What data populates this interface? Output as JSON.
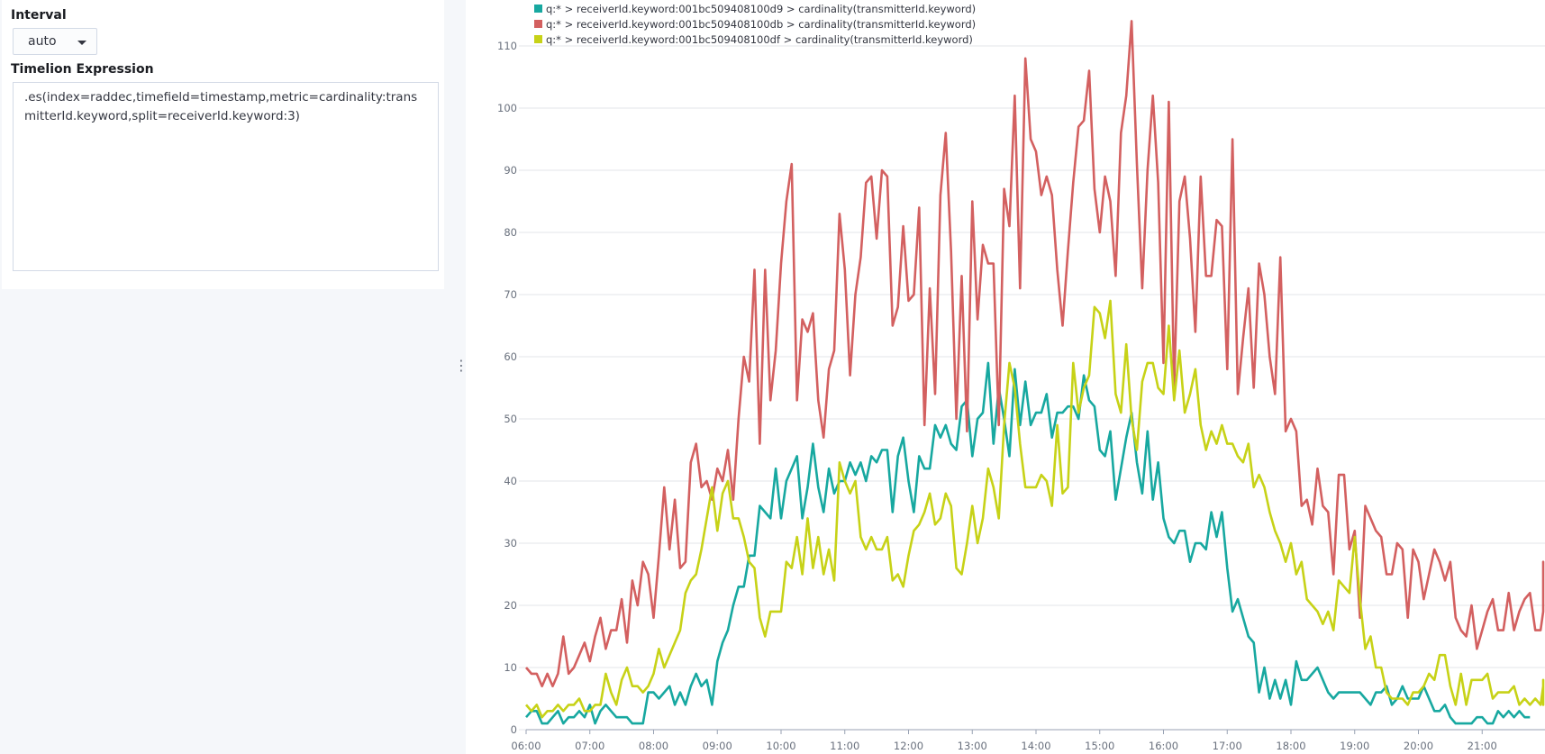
{
  "controls": {
    "interval_label": "Interval",
    "interval_value": "auto",
    "expression_label": "Timelion Expression",
    "expression_value": ".es(index=raddec,timefield=timestamp,metric=cardinality:transmitterId.keyword,split=receiverId.keyword:3)",
    "resizer_glyph": "⋮"
  },
  "chart_data": {
    "type": "line",
    "title": "",
    "xlabel": "",
    "ylabel": "",
    "ylim": [
      0,
      115
    ],
    "y_ticks": [
      0,
      10,
      20,
      30,
      40,
      50,
      60,
      70,
      80,
      90,
      100,
      110
    ],
    "x_ticks": [
      "06:00",
      "07:00",
      "08:00",
      "09:00",
      "10:00",
      "11:00",
      "12:00",
      "13:00",
      "14:00",
      "15:00",
      "16:00",
      "17:00",
      "18:00",
      "19:00",
      "20:00",
      "21:00"
    ],
    "x_interval_minutes": 5,
    "x_start": "06:00",
    "grid": "horizontal",
    "legend_position": "top-left",
    "series": [
      {
        "name": "q:* > receiverId.keyword:001bc509408100d9 > cardinality(transmitterId.keyword)",
        "color": "#17a8a0",
        "values": [
          2,
          3,
          3,
          1,
          1,
          2,
          3,
          1,
          2,
          2,
          3,
          2,
          4,
          1,
          3,
          4,
          3,
          2,
          2,
          2,
          1,
          1,
          1,
          6,
          6,
          5,
          6,
          7,
          4,
          6,
          4,
          7,
          9,
          7,
          8,
          4,
          11,
          14,
          16,
          20,
          23,
          23,
          28,
          28,
          36,
          35,
          34,
          42,
          34,
          40,
          42,
          44,
          34,
          39,
          46,
          39,
          35,
          42,
          38,
          40,
          40,
          43,
          41,
          43,
          40,
          44,
          43,
          45,
          45,
          35,
          44,
          47,
          40,
          35,
          44,
          42,
          42,
          49,
          47,
          49,
          46,
          45,
          52,
          53,
          44,
          50,
          51,
          59,
          46,
          55,
          50,
          44,
          58,
          49,
          56,
          49,
          51,
          51,
          54,
          47,
          51,
          51,
          52,
          52,
          50,
          57,
          53,
          52,
          45,
          44,
          48,
          37,
          42,
          47,
          51,
          43,
          38,
          48,
          37,
          43,
          34,
          31,
          30,
          32,
          32,
          27,
          30,
          30,
          29,
          35,
          31,
          35,
          26,
          19,
          21,
          18,
          15,
          14,
          6,
          10,
          5,
          8,
          5,
          8,
          4,
          11,
          8,
          8,
          9,
          10,
          8,
          6,
          5,
          6,
          6,
          6,
          6,
          6,
          5,
          4,
          6,
          6,
          7,
          4,
          5,
          7,
          5,
          5,
          5,
          7,
          5,
          3,
          3,
          4,
          2,
          1,
          1,
          1,
          1,
          2,
          2,
          1,
          1,
          3,
          2,
          3,
          2,
          3,
          2,
          2
        ]
      },
      {
        "name": "q:* > receiverId.keyword:001bc509408100db > cardinality(transmitterId.keyword)",
        "color": "#d36060",
        "values": [
          10,
          9,
          9,
          7,
          9,
          7,
          9,
          15,
          9,
          10,
          12,
          14,
          11,
          15,
          18,
          13,
          16,
          16,
          21,
          14,
          24,
          20,
          27,
          25,
          18,
          28,
          39,
          29,
          37,
          26,
          27,
          43,
          46,
          39,
          40,
          37,
          42,
          40,
          45,
          37,
          50,
          60,
          56,
          74,
          46,
          74,
          53,
          61,
          75,
          85,
          91,
          53,
          66,
          64,
          67,
          53,
          47,
          58,
          61,
          83,
          74,
          57,
          70,
          76,
          88,
          89,
          79,
          90,
          89,
          65,
          68,
          81,
          69,
          70,
          84,
          49,
          71,
          54,
          86,
          96,
          77,
          50,
          73,
          48,
          85,
          66,
          78,
          75,
          75,
          49,
          87,
          81,
          102,
          71,
          108,
          95,
          93,
          86,
          89,
          86,
          74,
          65,
          77,
          88,
          97,
          98,
          106,
          87,
          80,
          89,
          85,
          73,
          96,
          102,
          114,
          91,
          71,
          90,
          102,
          88,
          59,
          101,
          55,
          85,
          89,
          79,
          64,
          89,
          73,
          73,
          82,
          81,
          58,
          95,
          54,
          63,
          71,
          55,
          75,
          70,
          60,
          54,
          76,
          48,
          50,
          48,
          36,
          37,
          33,
          42,
          36,
          35,
          25,
          41,
          41,
          29,
          32,
          18,
          36,
          34,
          32,
          31,
          25,
          25,
          30,
          29,
          18,
          29,
          27,
          21,
          25,
          29,
          27,
          24,
          27,
          18,
          16,
          15,
          20,
          13,
          16,
          19,
          21,
          16,
          16,
          22,
          16,
          19,
          21,
          22,
          16,
          16,
          19,
          22,
          27,
          20
        ]
      },
      {
        "name": "q:* > receiverId.keyword:001bc509408100df > cardinality(transmitterId.keyword)",
        "color": "#c7d217",
        "values": [
          4,
          3,
          4,
          2,
          3,
          3,
          4,
          3,
          4,
          4,
          5,
          3,
          3,
          4,
          4,
          9,
          6,
          4,
          8,
          10,
          7,
          7,
          6,
          7,
          9,
          13,
          10,
          12,
          14,
          16,
          22,
          24,
          25,
          29,
          34,
          39,
          32,
          38,
          40,
          34,
          34,
          31,
          27,
          26,
          18,
          15,
          19,
          19,
          19,
          27,
          26,
          31,
          25,
          34,
          26,
          31,
          25,
          29,
          24,
          43,
          40,
          38,
          40,
          31,
          29,
          31,
          29,
          29,
          31,
          24,
          25,
          23,
          28,
          32,
          33,
          35,
          38,
          33,
          34,
          38,
          36,
          26,
          25,
          30,
          36,
          30,
          34,
          42,
          39,
          34,
          49,
          59,
          55,
          46,
          39,
          39,
          39,
          41,
          40,
          36,
          49,
          38,
          39,
          59,
          51,
          55,
          57,
          68,
          67,
          63,
          69,
          54,
          51,
          62,
          50,
          45,
          56,
          59,
          59,
          55,
          54,
          65,
          53,
          61,
          51,
          54,
          58,
          49,
          45,
          48,
          46,
          49,
          46,
          46,
          44,
          43,
          46,
          39,
          41,
          39,
          35,
          32,
          30,
          27,
          30,
          25,
          27,
          21,
          20,
          19,
          17,
          19,
          16,
          24,
          23,
          22,
          31,
          21,
          13,
          15,
          10,
          10,
          6,
          5,
          5,
          5,
          4,
          6,
          6,
          7,
          9,
          8,
          12,
          12,
          7,
          4,
          9,
          4,
          8,
          8,
          8,
          9,
          5,
          6,
          6,
          6,
          7,
          4,
          5,
          4,
          5,
          4,
          7,
          5,
          8,
          4,
          5,
          7
        ]
      }
    ]
  }
}
